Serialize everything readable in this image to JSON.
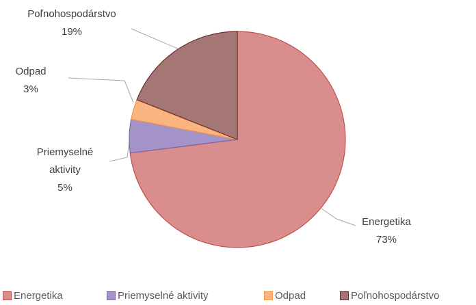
{
  "chart_data": {
    "type": "pie",
    "categories": [
      "Energetika",
      "Priemyselné aktivity",
      "Odpad",
      "Poľnohospodárstvo"
    ],
    "values": [
      73,
      5,
      3,
      19
    ],
    "value_labels": [
      "73%",
      "5%",
      "3%",
      "19%"
    ],
    "colors": [
      "#d98d8c",
      "#a393c9",
      "#f9b47f",
      "#a57774"
    ],
    "legend": "bottom"
  }
}
